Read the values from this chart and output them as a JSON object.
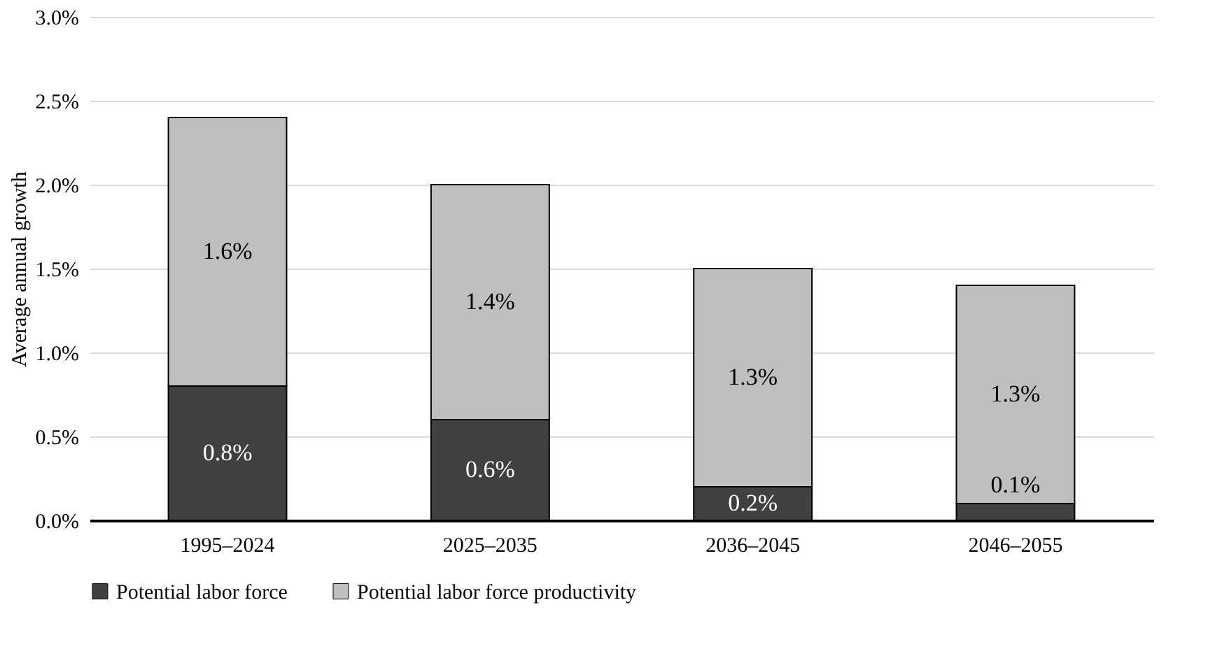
{
  "chart_data": {
    "type": "bar",
    "stacked": true,
    "ylabel": "Average annual growth",
    "categories": [
      "1995–2024",
      "2025–2035",
      "2036–2045",
      "2046–2055"
    ],
    "series": [
      {
        "name": "Potential labor force",
        "color": "#404040",
        "values": [
          0.8,
          0.6,
          0.2,
          0.1
        ],
        "value_labels": [
          "0.8%",
          "0.6%",
          "0.2%",
          "0.1%"
        ]
      },
      {
        "name": "Potential labor force productivity",
        "color": "#bfbfbf",
        "values": [
          1.6,
          1.4,
          1.3,
          1.3
        ],
        "value_labels": [
          "1.6%",
          "1.4%",
          "1.3%",
          "1.3%"
        ]
      }
    ],
    "ylim": [
      0,
      3.0
    ],
    "yticks": [
      {
        "value": 0,
        "label": "0.0%"
      },
      {
        "value": 0.5,
        "label": "0.5%"
      },
      {
        "value": 1.0,
        "label": "1.0%"
      },
      {
        "value": 1.5,
        "label": "1.5%"
      },
      {
        "value": 2.0,
        "label": "2.0%"
      },
      {
        "value": 2.5,
        "label": "2.5%"
      },
      {
        "value": 3.0,
        "label": "3.0%"
      }
    ],
    "grid": "y",
    "legend": "bottom"
  }
}
